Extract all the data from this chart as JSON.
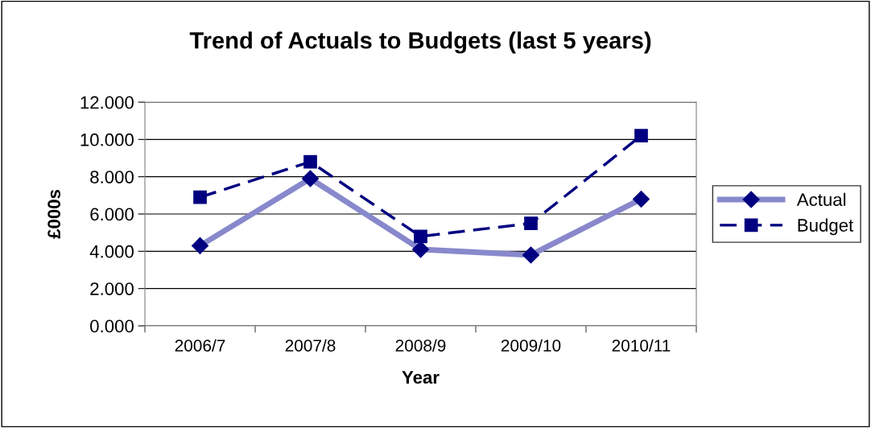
{
  "chart_data": {
    "type": "line",
    "title": "Trend of Actuals to Budgets (last 5 years)",
    "xlabel": "Year",
    "ylabel": "£000s",
    "categories": [
      "2006/7",
      "2007/8",
      "2008/9",
      "2009/10",
      "2010/11"
    ],
    "series": [
      {
        "name": "Actual",
        "color": "#8888cc",
        "values": [
          4.3,
          7.9,
          4.1,
          3.8,
          6.8
        ],
        "marker": "diamond",
        "line_style": "solid"
      },
      {
        "name": "Budget",
        "color": "#000080",
        "values": [
          6.9,
          8.8,
          4.8,
          5.5,
          10.2
        ],
        "marker": "square",
        "line_style": "dashed"
      }
    ],
    "ylim": [
      0,
      12
    ],
    "yticks": [
      {
        "value": 0,
        "label": "0.000"
      },
      {
        "value": 2,
        "label": "2.000"
      },
      {
        "value": 4,
        "label": "4.000"
      },
      {
        "value": 6,
        "label": "6.000"
      },
      {
        "value": 8,
        "label": "8.000"
      },
      {
        "value": 10,
        "label": "10.000"
      },
      {
        "value": 12,
        "label": "12.000"
      }
    ],
    "grid": "y",
    "legend": "right"
  }
}
